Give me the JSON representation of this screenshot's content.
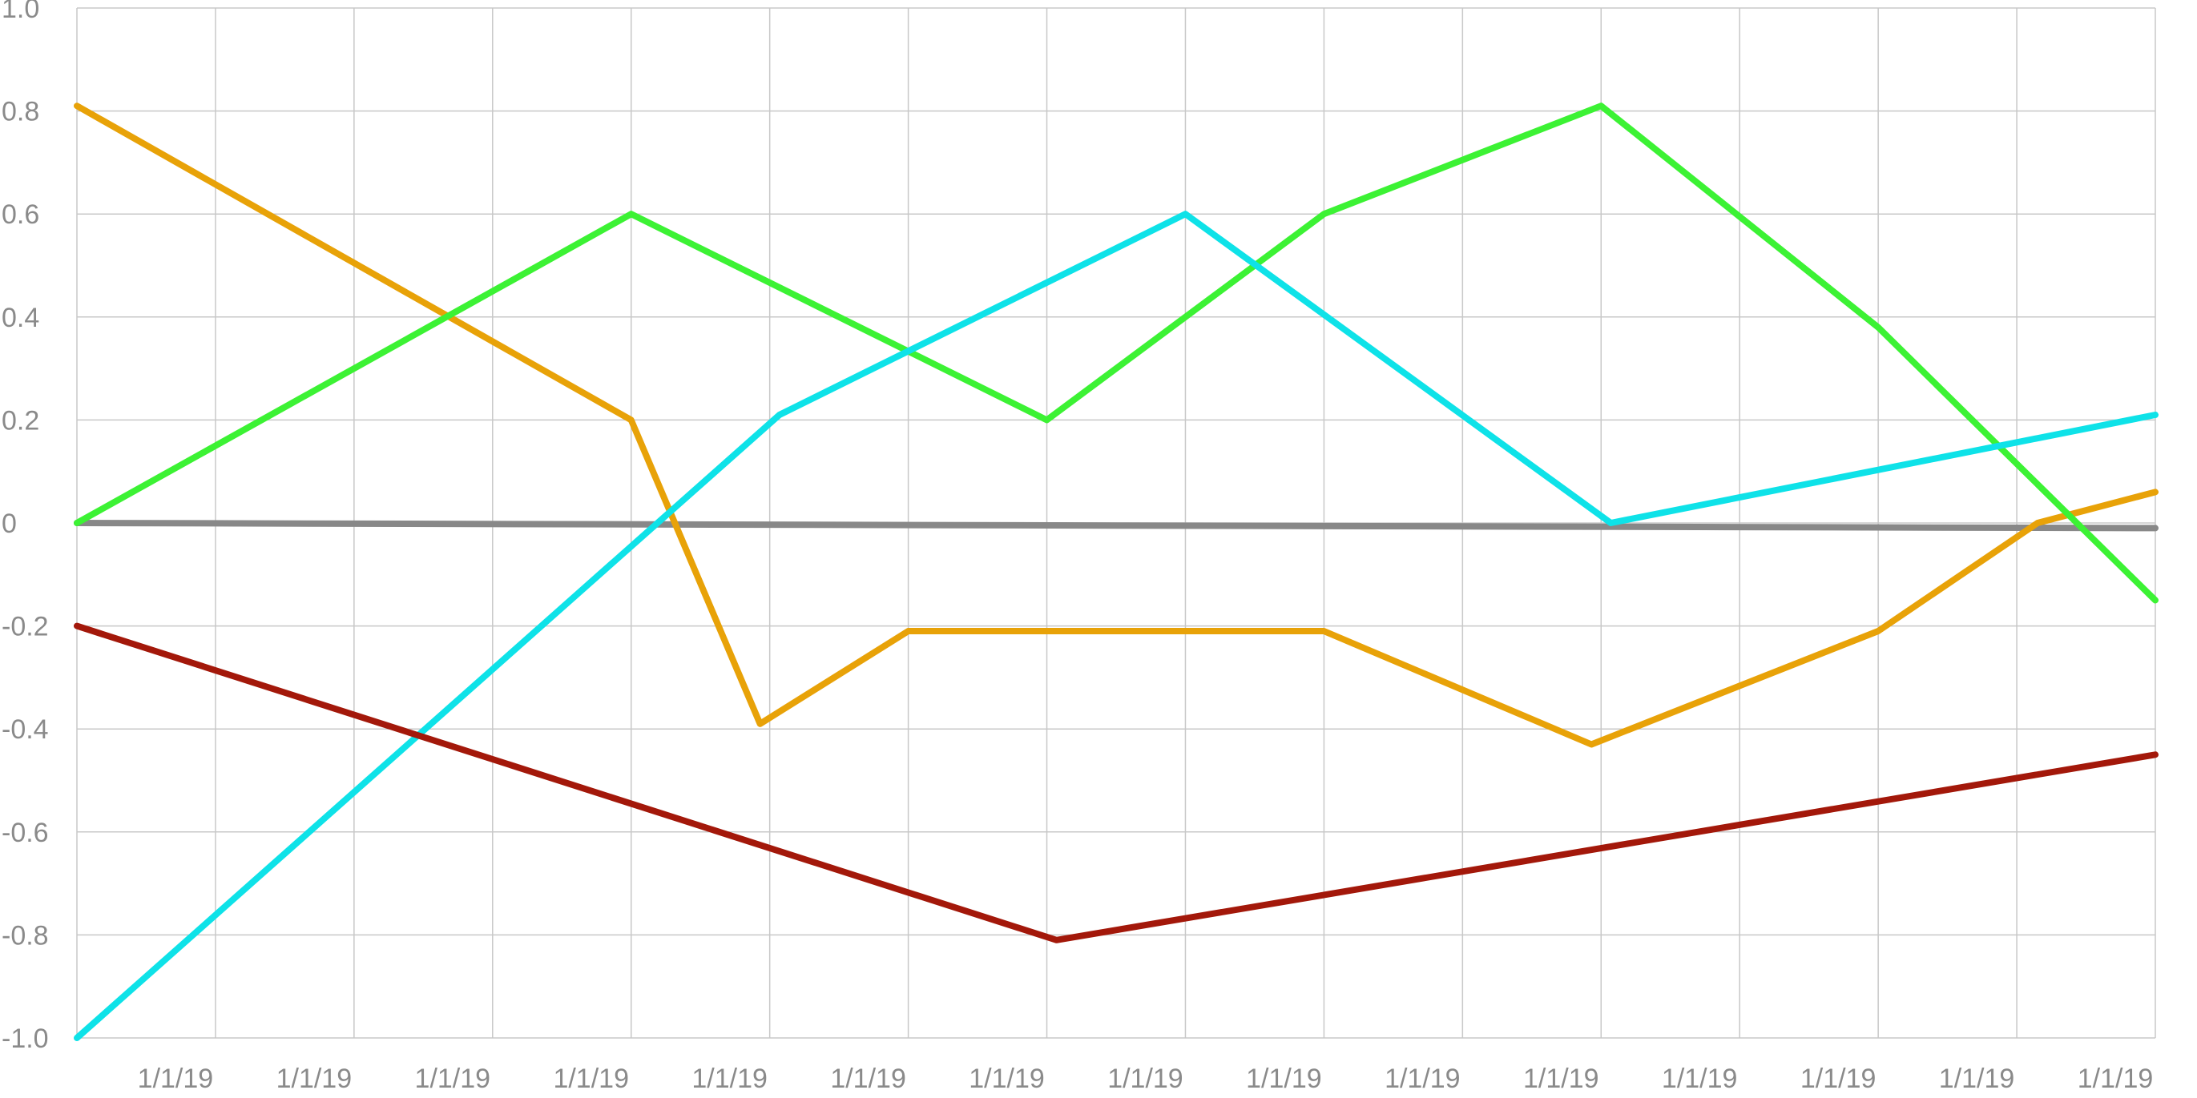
{
  "chart_data": {
    "type": "line",
    "title": "",
    "xlabel": "",
    "ylabel": "",
    "x": [
      "1/1/19",
      "1/1/19",
      "1/1/19",
      "1/1/19",
      "1/1/19",
      "1/1/19",
      "1/1/19",
      "1/1/19",
      "1/1/19",
      "1/1/19",
      "1/1/19",
      "1/1/19",
      "1/1/19",
      "1/1/19",
      "1/1/19",
      "1/1/19"
    ],
    "x_tick_labels": [
      "1/1/19",
      "1/1/19",
      "1/1/19",
      "1/1/19",
      "1/1/19",
      "1/1/19",
      "1/1/19",
      "1/1/19",
      "1/1/19",
      "1/1/19",
      "1/1/19",
      "1/1/19",
      "1/1/19",
      "1/1/19",
      "1/1/19"
    ],
    "y_tick_labels": [
      "1.0",
      "0.8",
      "0.6",
      "0.4",
      "0.2",
      "0",
      "-0.2",
      "-0.4",
      "-0.6",
      "-0.8",
      "-1.0"
    ],
    "ylim": [
      -1.0,
      1.0
    ],
    "grid": true,
    "legend": "none",
    "series": [
      {
        "color": "#888888",
        "points": [
          [
            0,
            0.0
          ],
          [
            15,
            -0.01
          ]
        ]
      },
      {
        "color": "#e8a208",
        "points": [
          [
            0,
            0.81
          ],
          [
            4,
            0.2
          ],
          [
            4.93,
            -0.39
          ],
          [
            6,
            -0.21
          ],
          [
            9,
            -0.21
          ],
          [
            10.93,
            -0.43
          ],
          [
            13,
            -0.21
          ],
          [
            14.15,
            0.0
          ],
          [
            15,
            0.06
          ]
        ]
      },
      {
        "color": "#3cf234",
        "points": [
          [
            0,
            0.0
          ],
          [
            4,
            0.6
          ],
          [
            7,
            0.2
          ],
          [
            9,
            0.6
          ],
          [
            11,
            0.81
          ],
          [
            13,
            0.38
          ],
          [
            15,
            -0.15
          ]
        ]
      },
      {
        "color": "#0ee2e8",
        "points": [
          [
            0,
            -1.0
          ],
          [
            5.07,
            0.21
          ],
          [
            8,
            0.6
          ],
          [
            11.07,
            0.0
          ],
          [
            15,
            0.21
          ]
        ]
      },
      {
        "color": "#a3180a",
        "points": [
          [
            0,
            -0.2
          ],
          [
            7.07,
            -0.81
          ],
          [
            15,
            -0.45
          ]
        ]
      }
    ]
  }
}
